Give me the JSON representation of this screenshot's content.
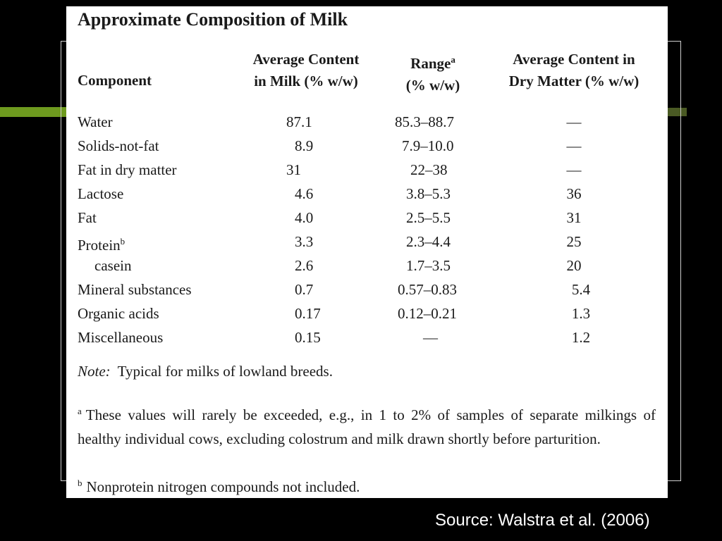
{
  "title": "Approximate Composition of Milk",
  "headers": {
    "component": "Component",
    "avg_line1": "Average Content",
    "avg_line2": "in Milk (% w/w)",
    "range_line1": "Range",
    "range_sup": "a",
    "range_line2": "(% w/w)",
    "dry_line1": "Average Content in",
    "dry_line2": "Dry Matter (% w/w)"
  },
  "rows": [
    {
      "component": "Water",
      "sup": "",
      "avg": "87.1",
      "range": "85.3–88.7",
      "dry": "—"
    },
    {
      "component": "Solids-not-fat",
      "sup": "",
      "avg": "8.9",
      "range": "7.9–10.0",
      "dry": "—"
    },
    {
      "component": "Fat in dry matter",
      "sup": "",
      "avg": "31",
      "range": "22–38",
      "dry": "—"
    },
    {
      "component": "Lactose",
      "sup": "",
      "avg": "4.6",
      "range": "3.8–5.3",
      "dry": "36"
    },
    {
      "component": "Fat",
      "sup": "",
      "avg": "4.0",
      "range": "2.5–5.5",
      "dry": "31"
    },
    {
      "component": "Protein",
      "sup": "b",
      "avg": "3.3",
      "range": "2.3–4.4",
      "dry": "25"
    },
    {
      "component": "casein",
      "sup": "",
      "avg": "2.6",
      "range": "1.7–3.5",
      "dry": "20"
    },
    {
      "component": "Mineral substances",
      "sup": "",
      "avg": "0.7",
      "range": "0.57–0.83",
      "dry": "5.4"
    },
    {
      "component": "Organic acids",
      "sup": "",
      "avg": "0.17",
      "range": "0.12–0.21",
      "dry": "1.3"
    },
    {
      "component": "Miscellaneous",
      "sup": "",
      "avg": "0.15",
      "range": "—",
      "dry": "1.2"
    }
  ],
  "note_label": "Note:",
  "note_text": "Typical for milks of lowland breeds.",
  "footnote_a_mark": "a",
  "footnote_a_text": "These values will rarely be exceeded, e.g., in 1 to 2% of samples of separate milkings of healthy individual cows, excluding colostrum and milk drawn shortly before parturition.",
  "footnote_b_mark": "b",
  "footnote_b_text": "Nonprotein nitrogen compounds not included.",
  "source": "Source: Walstra et al. (2006)",
  "colors": {
    "background": "#000000",
    "accent": "#6e9a1f",
    "table_bg": "#ffffff"
  }
}
